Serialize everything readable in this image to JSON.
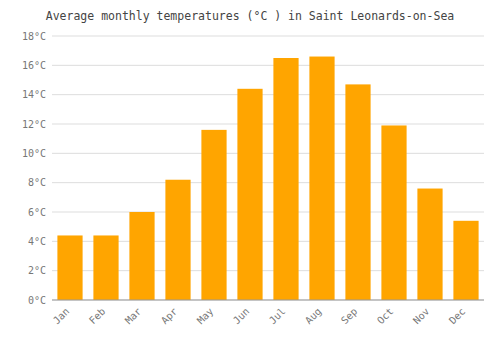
{
  "chart_data": {
    "type": "bar",
    "title": "Average monthly temperatures (°C ) in Saint Leonards-on-Sea",
    "categories": [
      "Jan",
      "Feb",
      "Mar",
      "Apr",
      "May",
      "Jun",
      "Jul",
      "Aug",
      "Sep",
      "Oct",
      "Nov",
      "Dec"
    ],
    "values": [
      4.4,
      4.4,
      6.0,
      8.2,
      11.6,
      14.4,
      16.5,
      16.6,
      14.7,
      11.9,
      7.6,
      5.4
    ],
    "color": "#FFA500",
    "ylim": [
      0,
      18
    ],
    "yticks": [
      {
        "value": 0,
        "label": "0°C"
      },
      {
        "value": 2,
        "label": "2°C"
      },
      {
        "value": 4,
        "label": "4°C"
      },
      {
        "value": 6,
        "label": "6°C"
      },
      {
        "value": 8,
        "label": "8°C"
      },
      {
        "value": 10,
        "label": "10°C"
      },
      {
        "value": 12,
        "label": "12°C"
      },
      {
        "value": 14,
        "label": "14°C"
      },
      {
        "value": 16,
        "label": "16°C"
      },
      {
        "value": 18,
        "label": "18°C"
      }
    ],
    "grid": true
  }
}
